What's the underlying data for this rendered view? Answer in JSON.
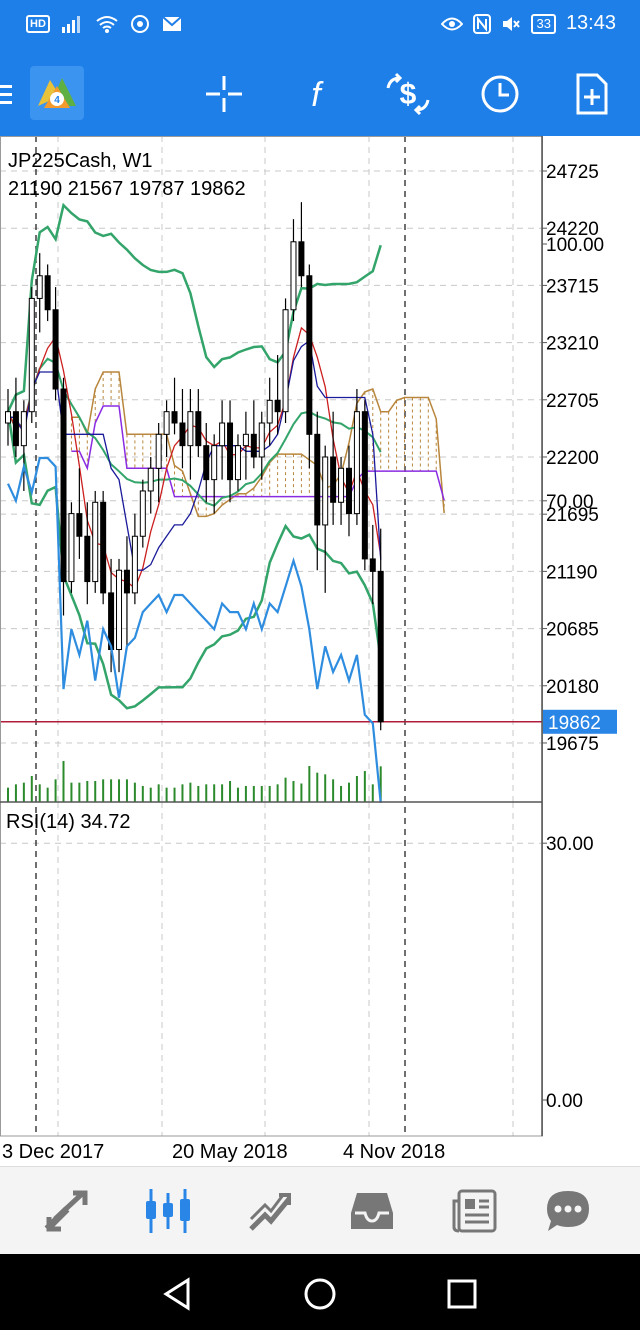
{
  "status_bar": {
    "hd_badge": "HD",
    "battery": "33",
    "time": "13:43"
  },
  "toolbar": {
    "icons": [
      "menu-icon",
      "metatrader-logo",
      "crosshair-icon",
      "indicators-icon",
      "trade-icon",
      "timeframe-icon",
      "new-order-icon"
    ]
  },
  "chart": {
    "symbol_label": "JP225Cash, W1",
    "ohlc_label": "21190 21567 19787 19862",
    "price_levels": [
      "24725",
      "24220",
      "23715",
      "23210",
      "22705",
      "22200",
      "21695",
      "21190",
      "20685",
      "20180",
      "19675"
    ],
    "current_price": "19862",
    "rsi_label": "RSI(14) 34.72",
    "rsi_levels": [
      "100.00",
      "70.00",
      "30.00",
      "0.00"
    ],
    "date_labels": [
      "3 Dec 2017",
      "20 May 2018",
      "4 Nov 2018"
    ]
  },
  "chart_data": {
    "type": "candlestick",
    "symbol": "JP225Cash",
    "timeframe": "W1",
    "last_bar": {
      "open": 21190,
      "high": 21567,
      "low": 19787,
      "close": 19862
    },
    "ylim": [
      19500,
      24900
    ],
    "y_ticks": [
      24725,
      24220,
      23715,
      23210,
      22705,
      22200,
      21695,
      21190,
      20685,
      20180,
      19675
    ],
    "x_labels": [
      "3 Dec 2017",
      "20 May 2018",
      "4 Nov 2018"
    ],
    "candles": [
      [
        22500,
        22800,
        22300,
        22600
      ],
      [
        22600,
        22900,
        22200,
        22300
      ],
      [
        22300,
        22700,
        21900,
        22600
      ],
      [
        22600,
        23700,
        22500,
        23600
      ],
      [
        23600,
        24000,
        23300,
        23800
      ],
      [
        23800,
        23900,
        23400,
        23500
      ],
      [
        23500,
        23700,
        22700,
        22800
      ],
      [
        22800,
        22900,
        20800,
        21100
      ],
      [
        21100,
        21800,
        21000,
        21700
      ],
      [
        21700,
        22100,
        21300,
        21500
      ],
      [
        21500,
        21800,
        20900,
        21100
      ],
      [
        21100,
        21900,
        21000,
        21800
      ],
      [
        21800,
        21900,
        20900,
        21000
      ],
      [
        21000,
        21300,
        20300,
        20500
      ],
      [
        20500,
        21300,
        20300,
        21200
      ],
      [
        21200,
        21500,
        20500,
        21000
      ],
      [
        21000,
        21700,
        20900,
        21500
      ],
      [
        21500,
        22000,
        21400,
        21900
      ],
      [
        21900,
        22200,
        21700,
        22100
      ],
      [
        22100,
        22500,
        21800,
        22400
      ],
      [
        22400,
        22700,
        22200,
        22600
      ],
      [
        22600,
        22900,
        22400,
        22500
      ],
      [
        22500,
        22800,
        22100,
        22300
      ],
      [
        22300,
        22800,
        22000,
        22600
      ],
      [
        22600,
        22800,
        22200,
        22300
      ],
      [
        22300,
        22500,
        21800,
        22000
      ],
      [
        22000,
        22400,
        21700,
        22300
      ],
      [
        22300,
        22700,
        22000,
        22500
      ],
      [
        22500,
        22700,
        21800,
        22000
      ],
      [
        22000,
        22400,
        21900,
        22300
      ],
      [
        22300,
        22600,
        22000,
        22400
      ],
      [
        22400,
        22700,
        22100,
        22200
      ],
      [
        22200,
        22600,
        22000,
        22500
      ],
      [
        22500,
        22900,
        22300,
        22700
      ],
      [
        22700,
        23100,
        22400,
        22600
      ],
      [
        22600,
        23600,
        22500,
        23500
      ],
      [
        23500,
        24300,
        23400,
        24100
      ],
      [
        24100,
        24450,
        23700,
        23800
      ],
      [
        23800,
        23900,
        22100,
        22400
      ],
      [
        22400,
        22600,
        21200,
        21600
      ],
      [
        21600,
        22300,
        21000,
        22200
      ],
      [
        22200,
        22600,
        21600,
        21800
      ],
      [
        21800,
        22200,
        21600,
        22100
      ],
      [
        22100,
        22300,
        21500,
        21700
      ],
      [
        21700,
        22800,
        21600,
        22600
      ],
      [
        22600,
        22700,
        21200,
        21300
      ],
      [
        21300,
        21600,
        20900,
        21190
      ],
      [
        21190,
        21567,
        19787,
        19862
      ]
    ],
    "rsi": {
      "name": "RSI(14)",
      "last": 34.72,
      "levels": [
        70,
        30
      ],
      "values": [
        72,
        70,
        74,
        71,
        75,
        75,
        74,
        48,
        55,
        52,
        56,
        49,
        55,
        53,
        47,
        53,
        54,
        57,
        58,
        59,
        57,
        59,
        59,
        58,
        57,
        56,
        55,
        58,
        57,
        57,
        55,
        58,
        55,
        58,
        57,
        60,
        63,
        60,
        55,
        48,
        53,
        50,
        52,
        49,
        52,
        45,
        44,
        34.72
      ]
    },
    "colors": {
      "bull_candle": "#ffffff",
      "bear_candle": "#000000",
      "bollinger": "#33a46a",
      "kumo": "#b8863c",
      "tenkan": "#1a1a9a",
      "kijun": "#8a2be2",
      "fast_ma": "#cc1f1f",
      "rsi_line": "#2f8de0",
      "price_line": "#b01c3c",
      "volume": "#2b8a2b"
    }
  }
}
